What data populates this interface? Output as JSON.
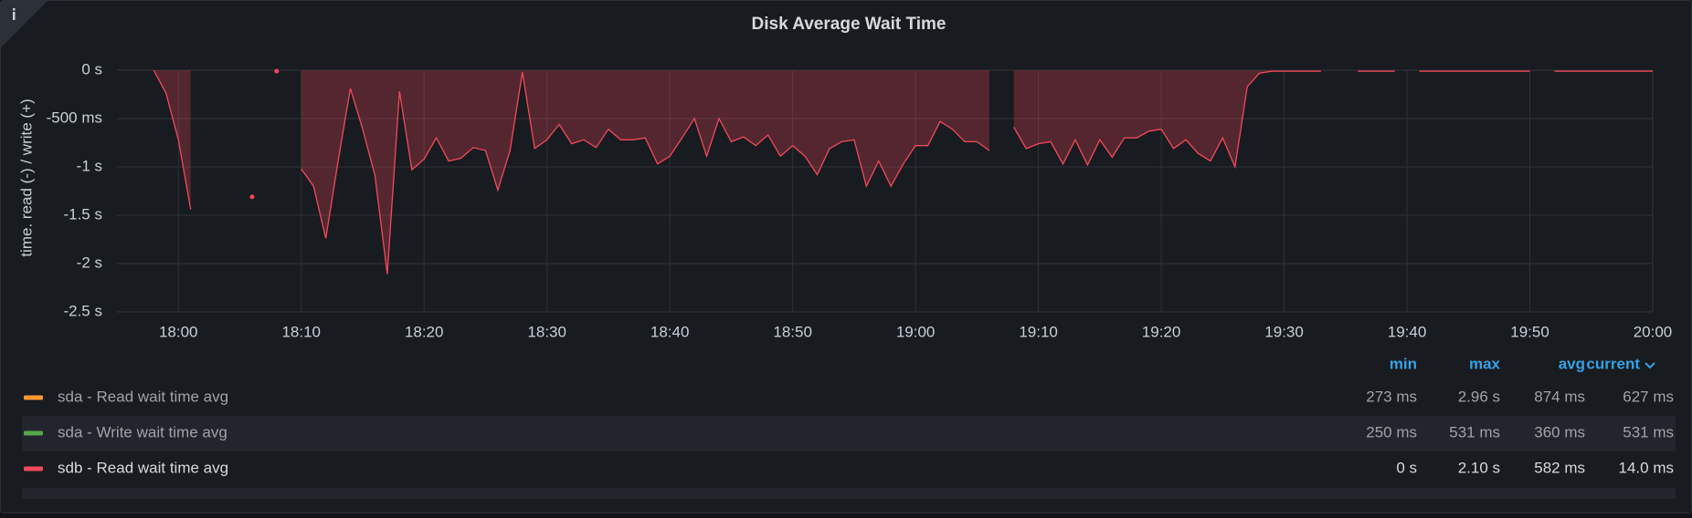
{
  "chart_data": {
    "type": "area",
    "title": "Disk Average Wait Time",
    "y_label": "time. read (-) / write (+)",
    "x": [
      "17:58",
      "17:59",
      "18:00",
      "18:01",
      "18:02",
      "18:03",
      "18:04",
      "18:05",
      "18:06",
      "18:07",
      "18:08",
      "18:09",
      "18:10",
      "18:11",
      "18:12",
      "18:13",
      "18:14",
      "18:15",
      "18:16",
      "18:17",
      "18:18",
      "18:19",
      "18:20",
      "18:21",
      "18:22",
      "18:23",
      "18:24",
      "18:25",
      "18:26",
      "18:27",
      "18:28",
      "18:29",
      "18:30",
      "18:31",
      "18:32",
      "18:33",
      "18:34",
      "18:35",
      "18:36",
      "18:37",
      "18:38",
      "18:39",
      "18:40",
      "18:41",
      "18:42",
      "18:43",
      "18:44",
      "18:45",
      "18:46",
      "18:47",
      "18:48",
      "18:49",
      "18:50",
      "18:51",
      "18:52",
      "18:53",
      "18:54",
      "18:55",
      "18:56",
      "18:57",
      "18:58",
      "18:59",
      "19:00",
      "19:01",
      "19:02",
      "19:03",
      "19:04",
      "19:05",
      "19:06",
      "19:07",
      "19:08",
      "19:09",
      "19:10",
      "19:11",
      "19:12",
      "19:13",
      "19:14",
      "19:15",
      "19:16",
      "19:17",
      "19:18",
      "19:19",
      "19:20",
      "19:21",
      "19:22",
      "19:23",
      "19:24",
      "19:25",
      "19:26",
      "19:27",
      "19:28",
      "19:29",
      "19:30",
      "19:31",
      "19:32",
      "19:33",
      "19:34",
      "19:35",
      "19:36",
      "19:37",
      "19:38",
      "19:39",
      "19:40",
      "19:41",
      "19:42",
      "19:43",
      "19:44",
      "19:45",
      "19:46",
      "19:47",
      "19:48",
      "19:49",
      "19:50",
      "19:51",
      "19:52",
      "19:53",
      "19:54",
      "19:55",
      "19:56",
      "19:57",
      "19:58",
      "19:59",
      "20:00"
    ],
    "series": [
      {
        "name": "sdb - Read wait time avg",
        "color": "#f2495c",
        "values": [
          0,
          -0.24,
          -0.72,
          -1.44,
          null,
          null,
          null,
          null,
          -1.31,
          null,
          -0.01,
          null,
          -1.02,
          -1.2,
          -1.74,
          -0.94,
          -0.19,
          -0.61,
          -1.09,
          -2.11,
          -0.22,
          -1.03,
          -0.92,
          -0.7,
          -0.94,
          -0.91,
          -0.8,
          -0.83,
          -1.24,
          -0.83,
          -0.02,
          -0.81,
          -0.72,
          -0.56,
          -0.76,
          -0.72,
          -0.8,
          -0.61,
          -0.72,
          -0.72,
          -0.7,
          -0.97,
          -0.89,
          -0.7,
          -0.5,
          -0.89,
          -0.5,
          -0.74,
          -0.69,
          -0.78,
          -0.67,
          -0.89,
          -0.78,
          -0.89,
          -1.08,
          -0.81,
          -0.74,
          -0.72,
          -1.2,
          -0.94,
          -1.2,
          -0.97,
          -0.78,
          -0.78,
          -0.53,
          -0.61,
          -0.74,
          -0.74,
          -0.83,
          null,
          -0.59,
          -0.81,
          -0.76,
          -0.74,
          -0.97,
          -0.72,
          -0.98,
          -0.72,
          -0.9,
          -0.7,
          -0.7,
          -0.63,
          -0.61,
          -0.81,
          -0.72,
          -0.86,
          -0.94,
          -0.7,
          -1.0,
          -0.17,
          -0.03,
          -0.01,
          -0.01,
          -0.01,
          -0.01,
          -0.01,
          null,
          null,
          -0.01,
          -0.01,
          -0.01,
          -0.01,
          null,
          -0.01,
          -0.01,
          -0.01,
          -0.01,
          -0.01,
          -0.01,
          -0.01,
          -0.01,
          -0.01,
          -0.01,
          null,
          -0.01,
          -0.01,
          -0.01,
          -0.01,
          -0.01,
          -0.01,
          -0.01,
          -0.01,
          -0.01
        ]
      }
    ],
    "xlim": [
      "17:55",
      "20:00"
    ],
    "xticks": [
      "18:00",
      "18:10",
      "18:20",
      "18:30",
      "18:40",
      "18:50",
      "19:00",
      "19:10",
      "19:20",
      "19:30",
      "19:40",
      "19:50",
      "20:00"
    ],
    "ylim": [
      -2.5,
      0
    ],
    "yticks": [
      {
        "value": 0,
        "label": "0 s"
      },
      {
        "value": -0.5,
        "label": "-500 ms"
      },
      {
        "value": -1,
        "label": "-1 s"
      },
      {
        "value": -1.5,
        "label": "-1.5 s"
      },
      {
        "value": -2,
        "label": "-2 s"
      },
      {
        "value": -2.5,
        "label": "-2.5 s"
      }
    ],
    "grid": true
  },
  "legend": {
    "columns": [
      "min",
      "max",
      "avg",
      "current"
    ],
    "rows": [
      {
        "name": "sda - Read wait time avg",
        "color": "#ff9830",
        "hidden": true,
        "min": "273 ms",
        "max": "2.96 s",
        "avg": "874 ms",
        "current": "627 ms"
      },
      {
        "name": "sda - Write wait time avg",
        "color": "#56a64b",
        "hidden": true,
        "min": "250 ms",
        "max": "531 ms",
        "avg": "360 ms",
        "current": "531 ms"
      },
      {
        "name": "sdb - Read wait time avg",
        "color": "#f2495c",
        "hidden": false,
        "min": "0 s",
        "max": "2.10 s",
        "avg": "582 ms",
        "current": "14.0 ms"
      }
    ]
  }
}
